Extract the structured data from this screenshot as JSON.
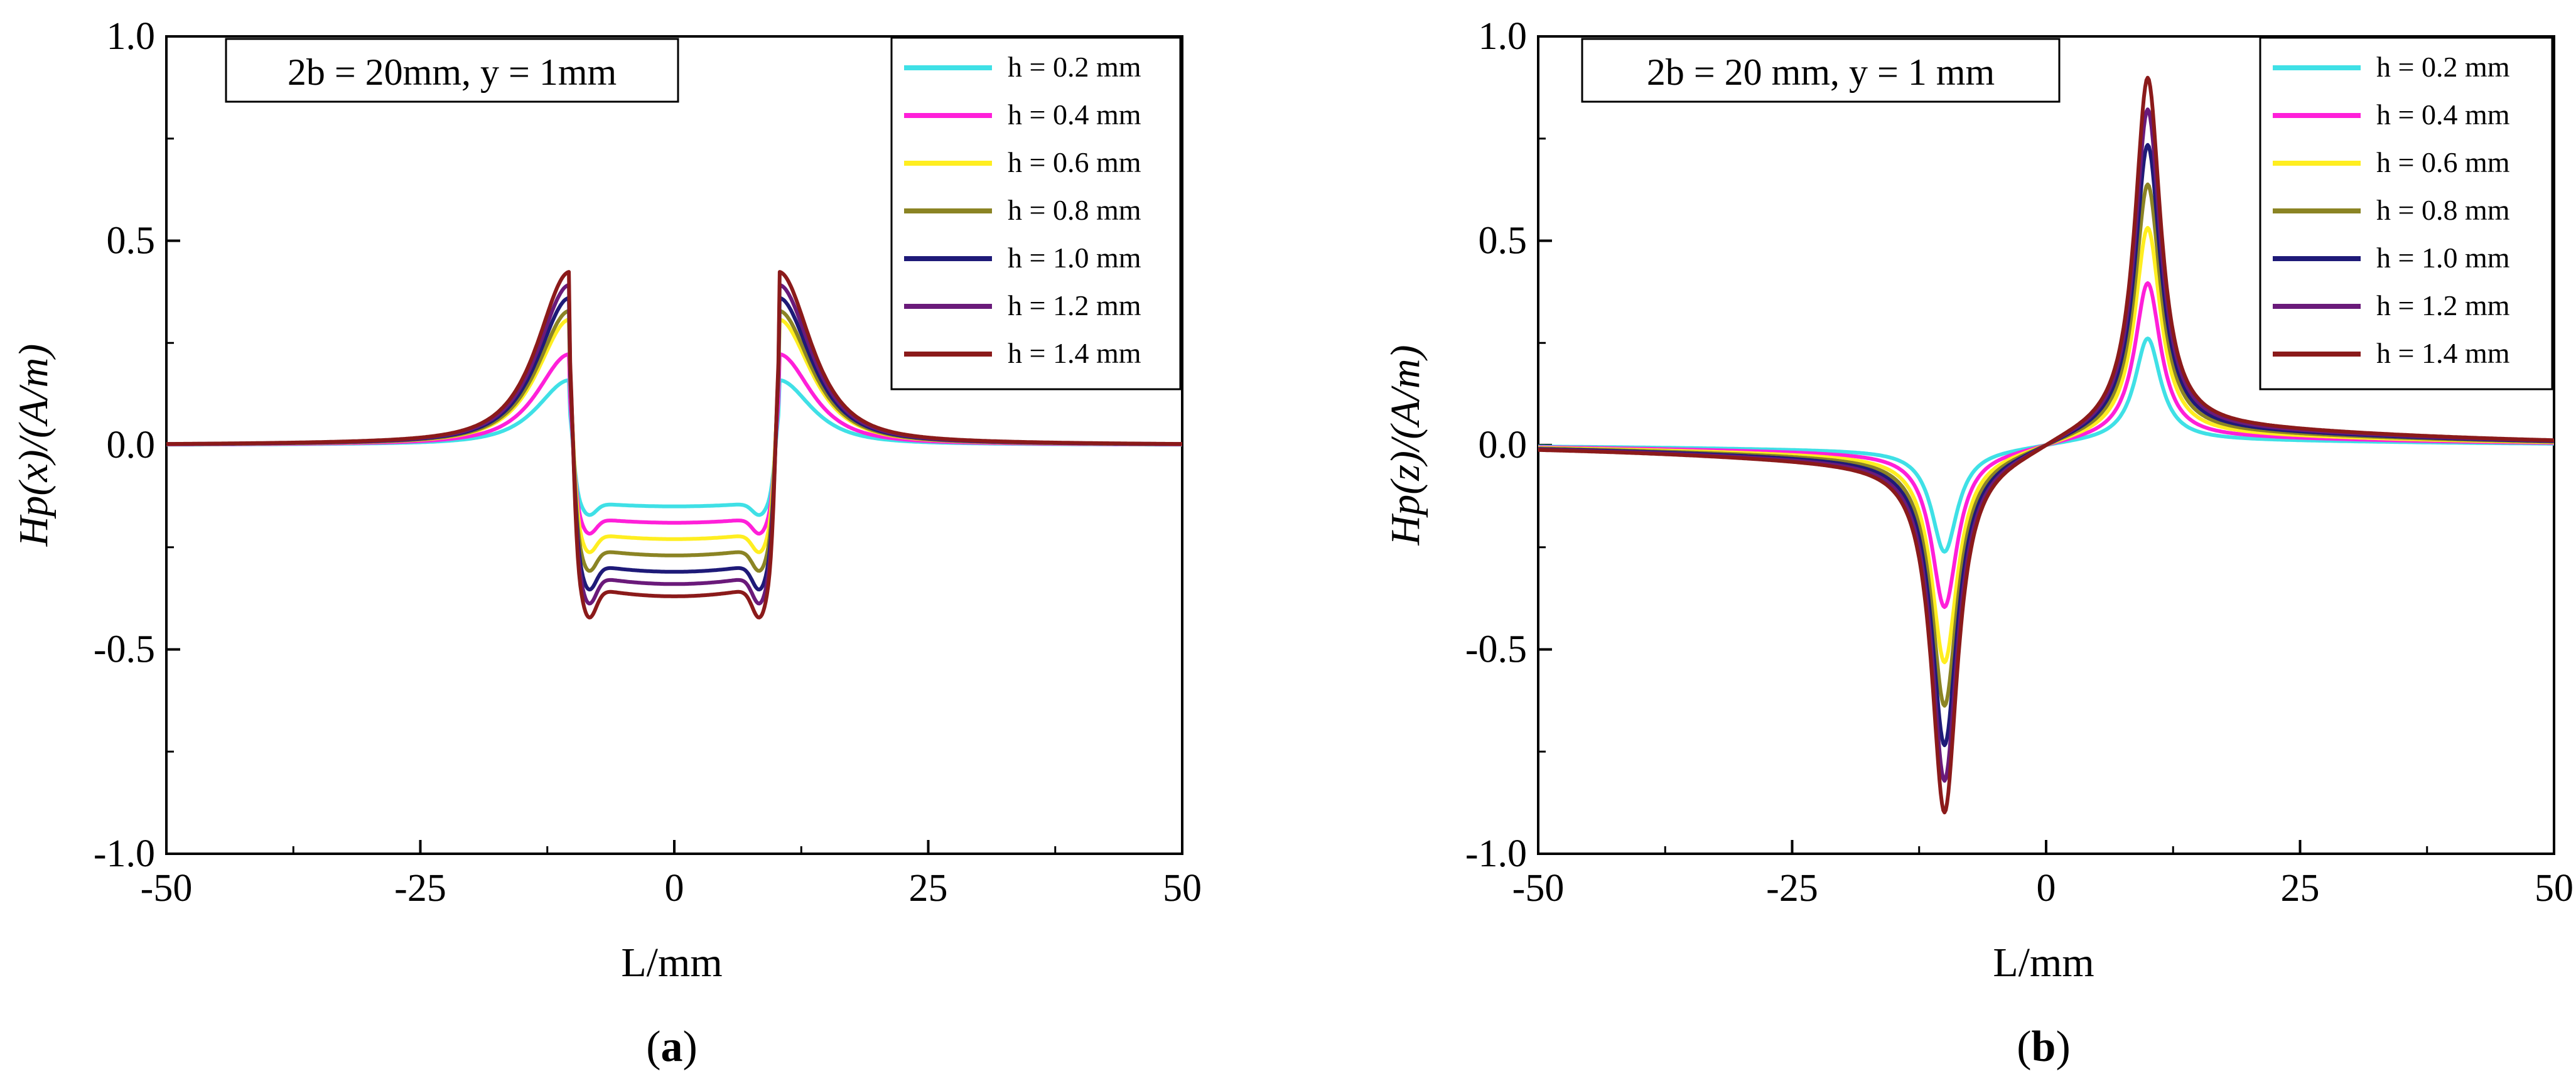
{
  "figure": {
    "panel_labels": [
      "(a)",
      "(b)"
    ],
    "panel_letters": [
      "a",
      "b"
    ]
  },
  "chart_data": [
    {
      "type": "line",
      "panel": "a",
      "title": "",
      "annotation": "2b = 20mm, y = 1mm",
      "xlabel": "L/mm",
      "ylabel": "Hp(x)/(A/m)",
      "xlim": [
        -50,
        50
      ],
      "ylim": [
        -1.0,
        1.0
      ],
      "xticks": [
        -50,
        -25,
        0,
        25,
        50
      ],
      "xtick_labels": [
        "-50",
        "-25",
        "0",
        "25",
        "50"
      ],
      "yticks": [
        -1.0,
        -0.5,
        0.0,
        0.5,
        1.0
      ],
      "ytick_labels": [
        "-1.0",
        "-0.5",
        "0.0",
        "0.5",
        "1.0"
      ],
      "legend_position": "top-right",
      "grid": false,
      "x_sample": [
        -50,
        -40,
        -30,
        -20,
        -15,
        -12,
        -11,
        -10.5,
        -9.5,
        -8.5,
        -7,
        -4,
        0,
        4,
        7,
        8.5,
        9.5,
        10.5,
        11,
        12,
        15,
        20,
        30,
        40,
        50
      ],
      "series": [
        {
          "name": "h = 0.2 mm",
          "color": "#3fe0e6",
          "peak": 0.15,
          "center": -0.15
        },
        {
          "name": "h = 0.4 mm",
          "color": "#ff1fd9",
          "peak": 0.21,
          "center": -0.19
        },
        {
          "name": "h = 0.6 mm",
          "color": "#ffee20",
          "peak": 0.29,
          "center": -0.23
        },
        {
          "name": "h = 0.8 mm",
          "color": "#8b8424",
          "peak": 0.31,
          "center": -0.27
        },
        {
          "name": "h = 1.0 mm",
          "color": "#1e1a78",
          "peak": 0.34,
          "center": -0.31
        },
        {
          "name": "h = 1.2 mm",
          "color": "#6a1a7a",
          "peak": 0.37,
          "center": -0.34
        },
        {
          "name": "h = 1.4 mm",
          "color": "#8b1a1a",
          "peak": 0.4,
          "center": -0.37
        }
      ]
    },
    {
      "type": "line",
      "panel": "b",
      "title": "",
      "annotation": "2b = 20 mm, y = 1 mm",
      "xlabel": "L/mm",
      "ylabel": "Hp(z)/(A/m)",
      "xlim": [
        -50,
        50
      ],
      "ylim": [
        -1.0,
        1.0
      ],
      "xticks": [
        -50,
        -25,
        0,
        25,
        50
      ],
      "xtick_labels": [
        "-50",
        "-25",
        "0",
        "25",
        "50"
      ],
      "yticks": [
        -1.0,
        -0.5,
        0.0,
        0.5,
        1.0
      ],
      "ytick_labels": [
        "-1.0",
        "-0.5",
        "0.0",
        "0.5",
        "1.0"
      ],
      "legend_position": "top-right",
      "grid": false,
      "x_sample": [
        -50,
        -30,
        -20,
        -15,
        -12,
        -10,
        -8,
        -5,
        0,
        5,
        8,
        10,
        12,
        15,
        20,
        30,
        50
      ],
      "series": [
        {
          "name": "h = 0.2 mm",
          "color": "#3fe0e6",
          "peak": 0.27
        },
        {
          "name": "h = 0.4 mm",
          "color": "#ff1fd9",
          "peak": 0.41
        },
        {
          "name": "h = 0.6 mm",
          "color": "#ffee20",
          "peak": 0.55
        },
        {
          "name": "h = 0.8 mm",
          "color": "#8b8424",
          "peak": 0.66
        },
        {
          "name": "h = 1.0 mm",
          "color": "#1e1a78",
          "peak": 0.76
        },
        {
          "name": "h = 1.2 mm",
          "color": "#6a1a7a",
          "peak": 0.85
        },
        {
          "name": "h = 1.4 mm",
          "color": "#8b1a1a",
          "peak": 0.93
        }
      ]
    }
  ]
}
